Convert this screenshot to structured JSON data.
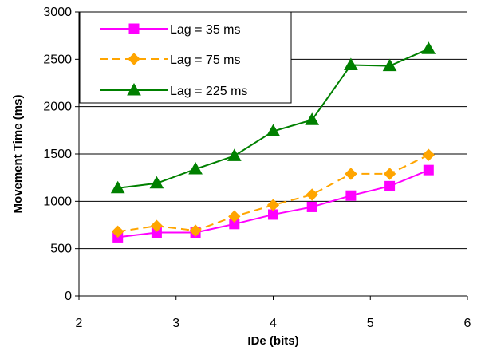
{
  "chart_data": {
    "type": "line",
    "title": "",
    "xlabel": "IDe (bits)",
    "ylabel": "Movement Time (ms)",
    "xlim": [
      2,
      6
    ],
    "ylim": [
      0,
      3000
    ],
    "x_ticks": [
      2,
      3,
      4,
      5,
      6
    ],
    "y_ticks": [
      0,
      500,
      1000,
      1500,
      2000,
      2500,
      3000
    ],
    "grid": "horizontal",
    "legend_position": "top-left",
    "x": [
      2.4,
      2.8,
      3.2,
      3.6,
      4.0,
      4.4,
      4.8,
      5.2,
      5.6
    ],
    "series": [
      {
        "name": "Lag = 35 ms",
        "color": "#ff00ff",
        "marker": "square",
        "dash": "solid",
        "values": [
          620,
          670,
          670,
          760,
          860,
          940,
          1060,
          1160,
          1330
        ]
      },
      {
        "name": "Lag = 75 ms",
        "color": "#ffa500",
        "marker": "diamond",
        "dash": "dashed",
        "values": [
          680,
          740,
          690,
          840,
          960,
          1070,
          1290,
          1290,
          1490
        ]
      },
      {
        "name": "Lag = 225 ms",
        "color": "#008000",
        "marker": "triangle",
        "dash": "solid",
        "values": [
          1140,
          1190,
          1340,
          1480,
          1740,
          1860,
          2440,
          2430,
          2610
        ]
      }
    ]
  }
}
